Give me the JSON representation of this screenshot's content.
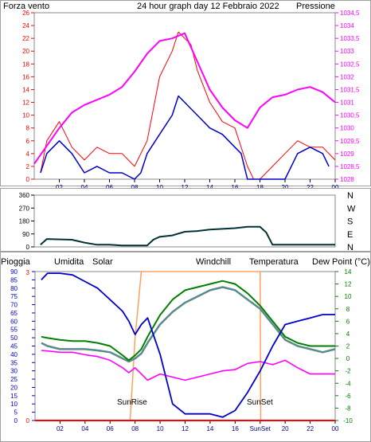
{
  "panel1": {
    "left_label": "Forza vento",
    "title": "24 hour graph day   12 Febbraio 2022",
    "right_label": "Pressione"
  },
  "panel3": {
    "labels": [
      "Pioggia",
      "Umidita",
      "Solar",
      "Windchill",
      "Temperatura",
      "Dew Point (°C)"
    ],
    "sunrise": "SunRise",
    "sunset": "SunSet"
  },
  "colors": {
    "wind": "#ff0000",
    "wind_avg": "#0000cc",
    "pressure": "#ff00ff",
    "direction": "#003333",
    "rain": "#ff0000",
    "humidity": "#0000cc",
    "solar": "#ffa060",
    "windchill": "#5a8a8a",
    "temperature": "#008000",
    "dewpoint": "#ff00ff"
  },
  "chart_data": [
    {
      "type": "line",
      "title": "24 hour graph day   12 Febbraio 2022",
      "x_ticks": [
        "02",
        "04",
        "06",
        "08",
        "10",
        "12",
        "14",
        "16",
        "18",
        "20",
        "22",
        "00"
      ],
      "y_left_ticks": [
        "0",
        "2",
        "4",
        "6",
        "8",
        "10",
        "12",
        "14",
        "16",
        "18",
        "20",
        "22",
        "24",
        "26"
      ],
      "y_left_range": [
        0,
        26
      ],
      "y_right_ticks": [
        "1028",
        "1028,5",
        "1029",
        "1029,5",
        "1030",
        "1030,5",
        "1031",
        "1031,5",
        "1032",
        "1032,5",
        "1033",
        "1033,5",
        "1034",
        "1034,5"
      ],
      "y_right_range": [
        1028,
        1034.5
      ],
      "series": [
        {
          "name": "Forza vento",
          "x": [
            0.5,
            1,
            2,
            3,
            4,
            5,
            6,
            7,
            8,
            9,
            10,
            11,
            11.5,
            12,
            12.5,
            13,
            14,
            15,
            16,
            16.5,
            17,
            17.5,
            18,
            19,
            20,
            21,
            22,
            23,
            24
          ],
          "y": [
            1,
            6,
            9,
            5,
            3,
            5,
            4,
            4,
            2,
            6,
            16,
            20,
            23,
            22,
            21,
            17,
            12,
            9,
            8,
            5,
            2,
            0,
            0,
            2,
            4,
            6,
            5,
            5,
            3
          ]
        },
        {
          "name": "Velocita media",
          "x": [
            0.5,
            1,
            2,
            3,
            4,
            5,
            6,
            7,
            8,
            8.5,
            9,
            10,
            11,
            11.5,
            12,
            12.5,
            13,
            14,
            15,
            16,
            16.5,
            17,
            17.5,
            18,
            19,
            20,
            20.5,
            21,
            22,
            23,
            23.5
          ],
          "y": [
            1,
            4,
            6,
            4,
            1,
            2,
            1,
            1,
            0,
            1,
            4,
            7,
            10,
            13,
            12,
            11,
            10,
            8,
            7,
            5,
            4,
            0,
            0,
            0,
            0,
            0,
            2,
            4,
            5,
            4,
            2
          ]
        },
        {
          "name": "Pressione",
          "x": [
            0,
            1,
            2,
            3,
            4,
            5,
            6,
            7,
            8,
            9,
            10,
            11,
            12,
            13,
            14,
            15,
            16,
            17,
            18,
            19,
            20,
            21,
            22,
            23,
            24
          ],
          "y": [
            1028.6,
            1029.3,
            1030.0,
            1030.6,
            1030.9,
            1031.1,
            1031.3,
            1031.6,
            1032.2,
            1032.9,
            1033.4,
            1033.5,
            1033.7,
            1032.6,
            1031.5,
            1030.8,
            1030.3,
            1030.0,
            1030.8,
            1031.2,
            1031.3,
            1031.5,
            1031.6,
            1031.4,
            1031.0
          ]
        }
      ]
    },
    {
      "type": "line",
      "title": "",
      "y_ticks": [
        "0",
        "90",
        "180",
        "270",
        "360"
      ],
      "y_range": [
        0,
        360
      ],
      "right_ticks": [
        "N",
        "W",
        "S",
        "E",
        "N"
      ],
      "series": [
        {
          "name": "Direzione vento",
          "x": [
            0.5,
            1,
            3,
            4,
            5,
            6,
            7,
            8,
            9,
            9.5,
            10,
            11,
            12,
            13,
            14,
            15,
            16,
            17,
            18,
            18.5,
            19,
            20,
            21,
            22,
            23,
            24
          ],
          "y": [
            15,
            55,
            50,
            30,
            15,
            15,
            10,
            10,
            10,
            50,
            70,
            80,
            105,
            110,
            120,
            125,
            130,
            140,
            140,
            100,
            15,
            15,
            15,
            15,
            15,
            15
          ]
        }
      ]
    },
    {
      "type": "line",
      "title": "",
      "x_ticks": [
        "02",
        "04",
        "06",
        "08",
        "10",
        "12",
        "14",
        "16",
        "SunSet",
        "20",
        "22",
        "00"
      ],
      "y_left_ticks": [
        "0",
        "5",
        "10",
        "15",
        "20",
        "25",
        "30",
        "35",
        "40",
        "45",
        "50",
        "55",
        "60",
        "65",
        "70",
        "75",
        "80",
        "85",
        "90"
      ],
      "y_left_range": [
        0,
        90
      ],
      "y_rain_ticks": [
        "0",
        "3"
      ],
      "y_right_ticks": [
        "-10",
        "-8",
        "-6",
        "-4",
        "-2",
        "0",
        "2",
        "4",
        "6",
        "8",
        "10",
        "12",
        "14"
      ],
      "y_right_range": [
        -10,
        14
      ],
      "series": [
        {
          "name": "Umidita",
          "x": [
            0.5,
            1,
            2,
            3,
            4,
            5,
            6,
            7,
            7.5,
            8,
            8.5,
            9,
            10,
            11,
            12,
            13,
            14,
            15,
            16,
            17,
            18,
            19,
            20,
            21,
            22,
            23,
            24
          ],
          "y": [
            85,
            89,
            89,
            88,
            84,
            80,
            73,
            66,
            60,
            52,
            58,
            62,
            40,
            10,
            4,
            4,
            4,
            2,
            6,
            17,
            30,
            45,
            58,
            60,
            62,
            64,
            64
          ]
        },
        {
          "name": "Temperatura",
          "x": [
            0.5,
            1,
            2,
            3,
            4,
            5,
            6,
            7,
            7.5,
            8,
            8.5,
            9,
            10,
            11,
            12,
            13,
            14,
            15,
            16,
            17,
            18,
            19,
            20,
            21,
            22,
            23,
            24
          ],
          "y": [
            3.5,
            3.3,
            3.0,
            2.8,
            2.8,
            2.5,
            2.0,
            0.5,
            -0.3,
            0.5,
            1.5,
            3.5,
            7.0,
            9.5,
            11.0,
            11.5,
            12.0,
            12.5,
            12.0,
            10.5,
            8.5,
            6.0,
            3.5,
            2.5,
            2.0,
            2.0,
            2.0
          ]
        },
        {
          "name": "Windchill",
          "x": [
            0.5,
            1,
            2,
            3,
            4,
            5,
            6,
            7,
            7.5,
            8,
            8.5,
            9,
            10,
            11,
            12,
            13,
            14,
            15,
            16,
            17,
            18,
            19,
            20,
            21,
            22,
            23,
            24
          ],
          "y": [
            2.5,
            2.0,
            1.5,
            1.5,
            1.5,
            1.3,
            1.0,
            0.0,
            -0.5,
            0.0,
            0.8,
            2.5,
            5.5,
            7.5,
            9.0,
            10.0,
            11.0,
            11.5,
            11.0,
            9.5,
            8.0,
            5.5,
            3.0,
            2.0,
            1.5,
            1.0,
            1.5
          ]
        },
        {
          "name": "Dew Point (°C)",
          "x": [
            0.5,
            1,
            2,
            3,
            4,
            5,
            6,
            7,
            7.5,
            8,
            8.5,
            9,
            10,
            11,
            12,
            13,
            14,
            15,
            16,
            17,
            18,
            19,
            20,
            21,
            22,
            23,
            24
          ],
          "y": [
            1.3,
            1.2,
            1.0,
            1.0,
            0.6,
            0.3,
            -0.3,
            -1.5,
            -2.3,
            -1.5,
            -2.5,
            -3.5,
            -2.5,
            -3.0,
            -3.5,
            -3.0,
            -2.5,
            -2.0,
            -1.8,
            -0.8,
            -0.5,
            -1.0,
            -0.3,
            -1.5,
            -2.5,
            -2.5,
            -2.5
          ]
        },
        {
          "name": "Solar",
          "x": [
            0,
            7.5,
            7.6,
            8,
            8.5,
            18,
            18.05,
            24
          ],
          "y": [
            0,
            0,
            0,
            50,
            90,
            90,
            0,
            0
          ]
        },
        {
          "name": "Pioggia",
          "x": [
            0,
            24
          ],
          "y": [
            0,
            0
          ]
        }
      ]
    }
  ]
}
